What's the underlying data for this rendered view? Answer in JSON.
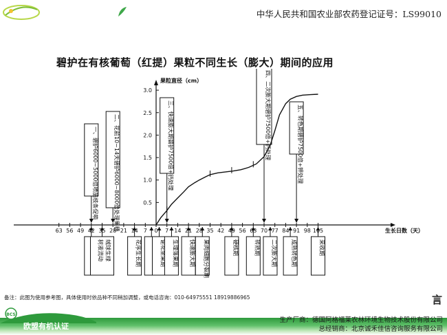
{
  "header": {
    "certificate": "中华人民共和国农业部农药登记证号：LS99010"
  },
  "title": "碧护在有核葡萄（红提）果粒不同生长（膨大）期间的应用",
  "chart_data": {
    "type": "line",
    "title": "碧护在有核葡萄（红提）果粒不同生长（膨大）期间的应用",
    "xlabel": "生长日数（天）",
    "ylabel": "果粒直径（cm）",
    "x_ticks": [
      "63",
      "56",
      "49",
      "42",
      "35",
      "28",
      "21",
      "14",
      "7",
      "0",
      "7",
      "14",
      "21",
      "28",
      "35",
      "42",
      "49",
      "56",
      "63",
      "70",
      "77",
      "84",
      "91",
      "98",
      "105"
    ],
    "y_ticks": [
      "0.5",
      "1.0",
      "1.5",
      "2.0",
      "2.5",
      "3.0"
    ],
    "ylim": [
      0,
      3.0
    ],
    "series": [
      {
        "x": [
          0,
          3,
          7,
          10,
          14,
          18,
          21,
          25,
          28,
          32,
          35,
          40,
          45,
          50,
          55,
          60,
          65,
          70,
          74,
          77,
          80,
          84,
          87,
          91,
          95,
          100,
          105
        ],
        "y": [
          0,
          0.16,
          0.32,
          0.46,
          0.6,
          0.74,
          0.85,
          0.94,
          1.0,
          1.07,
          1.12,
          1.16,
          1.18,
          1.2,
          1.23,
          1.28,
          1.36,
          1.52,
          1.78,
          2.1,
          2.45,
          2.7,
          2.8,
          2.86,
          2.89,
          2.9,
          2.91
        ]
      }
    ],
    "ticks_marks_on_curve": [
      7,
      35,
      49,
      63
    ],
    "top_callouts": [
      {
        "text": "一、碧护6000~5000倍喷施枝条促萌",
        "x": -42
      },
      {
        "text": "二、花前10~14天碧护6000~8000倍处理果穗",
        "x": -28
      },
      {
        "text": "三、快速膨大期碧护7500倍+钙处理",
        "x": 7
      },
      {
        "text": "四、二次膨大期碧护7500倍+钙处理",
        "x": 70
      },
      {
        "text": "五、转色期碧护7500倍+钾处理",
        "x": 91
      }
    ],
    "bottom_stages": [
      {
        "text": "萌芽期",
        "x": -42,
        "width": 20
      },
      {
        "text": "树液流动 绒球生绿",
        "x": -35,
        "width": 34
      },
      {
        "text": "花序生长期",
        "x": -14,
        "width": 20
      },
      {
        "text": "开花期",
        "x": -3,
        "width": 20
      },
      {
        "text": "谢花坐果期",
        "x": 2,
        "width": 20
      },
      {
        "text": "生理落果期",
        "x": 10,
        "width": 20
      },
      {
        "text": "快速膨大期",
        "x": 21,
        "width": 20
      },
      {
        "text": "果肉细胞分裂期",
        "x": 30,
        "width": 20
      },
      {
        "text": "硬核期",
        "x": 49,
        "width": 20
      },
      {
        "text": "转熟期",
        "x": 63,
        "width": 20
      },
      {
        "text": "二次膨大期",
        "x": 74,
        "width": 20
      },
      {
        "text": "成熟转色期",
        "x": 87,
        "width": 20
      },
      {
        "text": "采收期",
        "x": 105,
        "width": 20
      }
    ]
  },
  "note": "备注：此图为使用参考图，具体使用时依品种不同稍加调整，或电话咨询：010-64975551    18919886965",
  "footer": {
    "org_name": "欧盟有机认证",
    "logo_text": "BCS",
    "manufacturer": "生产厂商：德国阿格福莱农林环境生物技术股份有限公司",
    "distributor": "总经销商：北京诚禾佳信咨询服务有限公司"
  },
  "side_mark": "言"
}
